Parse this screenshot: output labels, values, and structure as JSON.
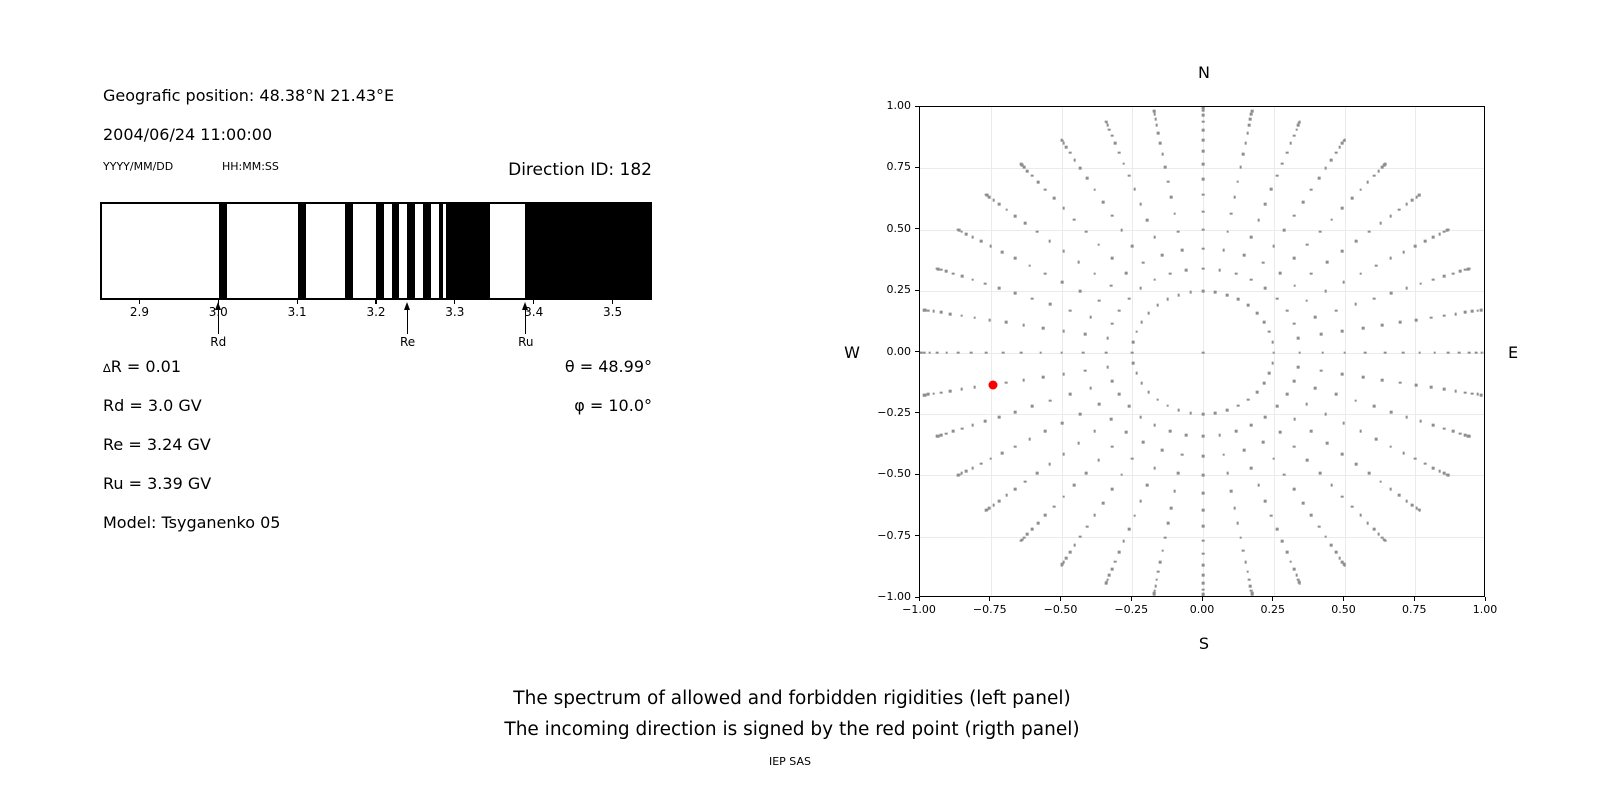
{
  "header": {
    "geographic_position": "Geografic position: 48.38°N 21.43°E",
    "datetime": "2004/06/24 11:00:00",
    "date_format": "YYYY/MM/DD",
    "time_format": "HH:MM:SS",
    "direction_id": "Direction ID: 182"
  },
  "info": {
    "delta_sym": "∆",
    "delta_rest": "R = 0.01",
    "rd": "Rd = 3.0 GV",
    "re": "Re = 3.24 GV",
    "ru": "Ru = 3.39 GV",
    "model": "Model: Tsyganenko 05",
    "theta": "θ = 48.99°",
    "phi": "φ = 10.0°"
  },
  "caption": {
    "line1": "The spectrum of allowed and forbidden rigidities (left panel)",
    "line2": "The incoming direction is signed by the red point (rigth panel)",
    "credit": "IEP SAS"
  },
  "colors": {
    "forbidden_band": "#000000",
    "direction_dot": "#8e8e8e",
    "red_point": "#ff0000",
    "grid": "#ebebeb"
  },
  "chart_data": [
    {
      "type": "bar",
      "panel": "rigidity-spectrum",
      "description": "Allowed (white) and forbidden (black) rigidity bands in GV",
      "xlim": [
        2.85,
        3.55
      ],
      "xticks": [
        2.9,
        3.0,
        3.1,
        3.2,
        3.3,
        3.4,
        3.5
      ],
      "forbidden_intervals": [
        [
          3.0,
          3.01
        ],
        [
          3.1,
          3.11
        ],
        [
          3.16,
          3.17
        ],
        [
          3.2,
          3.21
        ],
        [
          3.22,
          3.23
        ],
        [
          3.24,
          3.25
        ],
        [
          3.26,
          3.27
        ],
        [
          3.28,
          3.286
        ],
        [
          3.29,
          3.345
        ],
        [
          3.39,
          3.55
        ]
      ],
      "arrows": [
        {
          "label": "Rd",
          "value": 3.0
        },
        {
          "label": "Re",
          "value": 3.24
        },
        {
          "label": "Ru",
          "value": 3.39
        }
      ]
    },
    {
      "type": "scatter",
      "panel": "direction-map",
      "description": "Grid of incoming directions: rays every 10 deg azimuth, radius = sin(zenith); red point marks the incoming direction",
      "xlim": [
        -1.0,
        1.0
      ],
      "ylim": [
        -1.0,
        1.0
      ],
      "xticks": [
        -1.0,
        -0.75,
        -0.5,
        -0.25,
        0.0,
        0.25,
        0.5,
        0.75,
        1.0
      ],
      "yticks": [
        -1.0,
        -0.75,
        -0.5,
        -0.25,
        0.0,
        0.25,
        0.5,
        0.75,
        1.0
      ],
      "grid": true,
      "compass": {
        "top": "N",
        "bottom": "S",
        "left": "W",
        "right": "E"
      },
      "azimuth_start_deg": 0,
      "azimuth_step_deg": 10,
      "azimuth_count": 36,
      "ray_radii": [
        0.25,
        0.342,
        0.423,
        0.5,
        0.574,
        0.643,
        0.707,
        0.766,
        0.819,
        0.866,
        0.906,
        0.94,
        0.966,
        0.985,
        0.996,
        1.0
      ],
      "center_dot": true,
      "red_point": {
        "x": -0.743,
        "y": -0.131
      }
    }
  ]
}
